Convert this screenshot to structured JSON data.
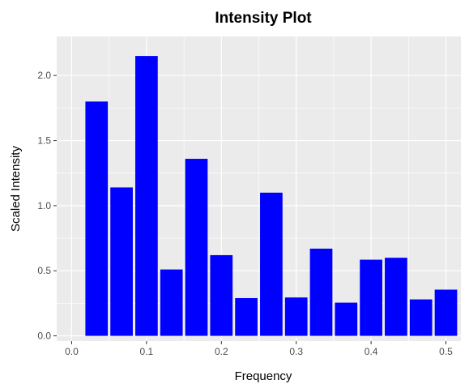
{
  "chart_data": {
    "type": "bar",
    "title": "Intensity Plot",
    "xlabel": "Frequency",
    "ylabel": "Scaled Intensity",
    "x": [
      0.03333,
      0.06667,
      0.1,
      0.13333,
      0.16667,
      0.2,
      0.23333,
      0.26667,
      0.3,
      0.33333,
      0.36667,
      0.4,
      0.43333,
      0.46667,
      0.5
    ],
    "values": [
      1.8,
      1.14,
      2.15,
      0.51,
      1.36,
      0.62,
      0.29,
      1.1,
      0.295,
      0.67,
      0.255,
      0.585,
      0.6,
      0.28,
      0.355
    ],
    "xlim": [
      -0.02,
      0.52
    ],
    "ylim": [
      -0.04,
      2.3
    ],
    "xticks": [
      0.0,
      0.1,
      0.2,
      0.3,
      0.4,
      0.5
    ],
    "xtick_labels": [
      "0.0",
      "0.1",
      "0.2",
      "0.3",
      "0.4",
      "0.5"
    ],
    "yticks": [
      0.0,
      0.5,
      1.0,
      1.5,
      2.0
    ],
    "ytick_labels": [
      "0.0",
      "0.5",
      "1.0",
      "1.5",
      "2.0"
    ],
    "bar_color": "#0000ff",
    "panel_color": "#ebebeb",
    "grid": true,
    "legend": "none"
  }
}
